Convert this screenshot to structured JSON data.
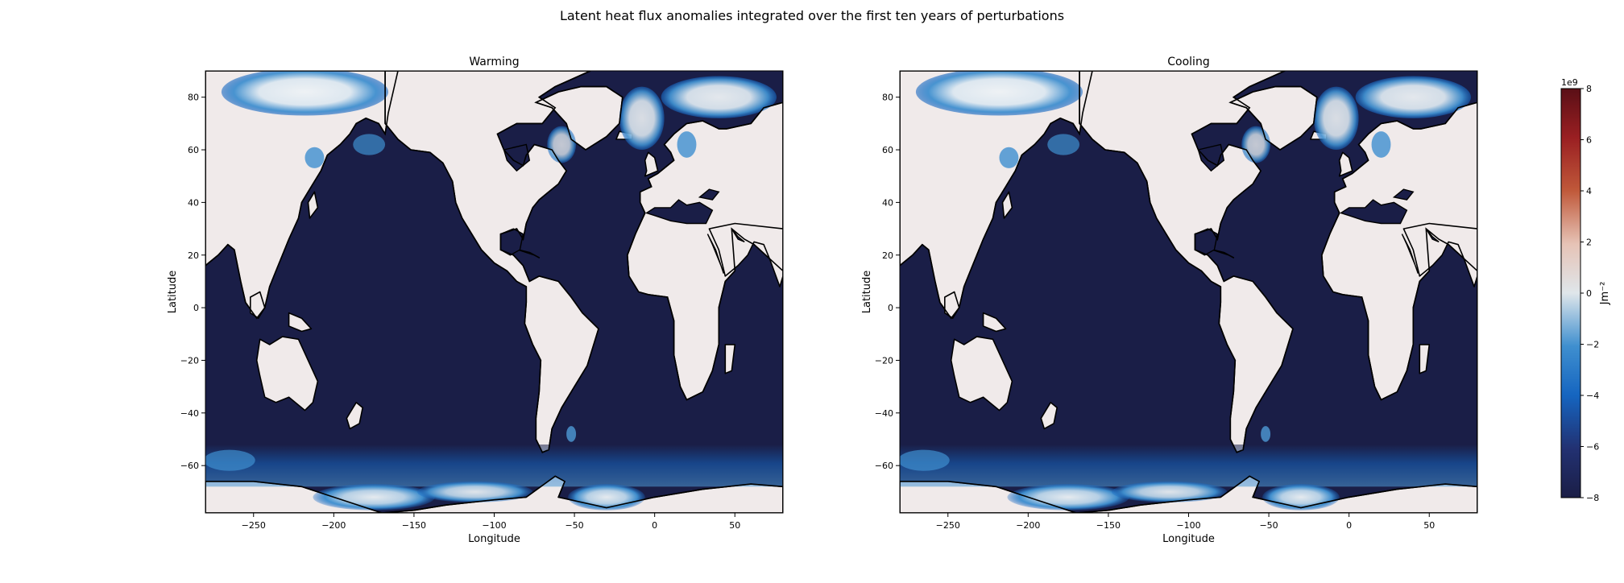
{
  "figure": {
    "suptitle": "Latent heat flux anomalies integrated over the first ten years of perturbations"
  },
  "panels": [
    {
      "title": "Warming",
      "xlabel": "Longitude",
      "ylabel": "Latitude"
    },
    {
      "title": "Cooling",
      "xlabel": "Longitude",
      "ylabel": "Latitude"
    }
  ],
  "axes": {
    "xlim": [
      -280,
      80
    ],
    "ylim": [
      -78,
      90
    ],
    "xticks": [
      -250,
      -200,
      -150,
      -100,
      -50,
      0,
      50
    ],
    "yticks": [
      -60,
      -40,
      -20,
      0,
      20,
      40,
      60,
      80
    ]
  },
  "colorbar": {
    "label": "Jm⁻²",
    "exponent": "1e9",
    "range": [
      -8,
      8
    ],
    "ticks": [
      -8,
      -6,
      -4,
      -2,
      0,
      2,
      4,
      6,
      8
    ],
    "colors": [
      "#1b1e46",
      "#223172",
      "#1565c0",
      "#3f8fcf",
      "#dfe6ea",
      "#e6c3b6",
      "#c0593a",
      "#9a1f22",
      "#5a0f16"
    ]
  },
  "map_colors": {
    "ocean": "#1a1e47",
    "land": "#f0eaea",
    "coast": "#000000",
    "anomaly_strong": "#1565c0",
    "anomaly_weak": "#e9eef2"
  }
}
